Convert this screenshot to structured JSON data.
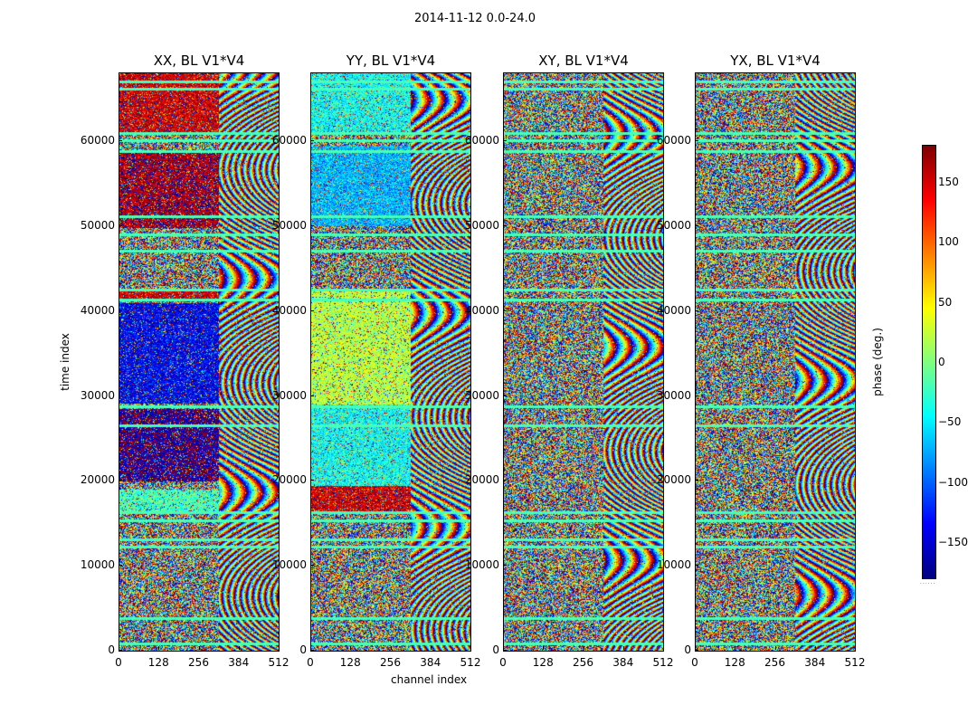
{
  "chart_data": {
    "type": "heatmap",
    "suptitle": "2014-11-12 0.0-24.0",
    "xlabel": "channel index",
    "ylabel": "time index",
    "xlim": [
      0,
      512
    ],
    "ylim": [
      0,
      68000
    ],
    "x_ticks": [
      0,
      128,
      256,
      384,
      512
    ],
    "x_tick_labels": [
      "0",
      "128",
      "256",
      "384",
      "512"
    ],
    "y_ticks": [
      0,
      10000,
      20000,
      30000,
      40000,
      50000,
      60000
    ],
    "y_tick_labels": [
      "0",
      "10000",
      "20000",
      "30000",
      "40000",
      "50000",
      "60000"
    ],
    "colormap": "jet",
    "panels": [
      {
        "title": "XX, BL V1*V4",
        "pol": "XX"
      },
      {
        "title": "YY, BL V1*V4",
        "pol": "YY"
      },
      {
        "title": "XY, BL V1*V4",
        "pol": "XY"
      },
      {
        "title": "YX, BL V1*V4",
        "pol": "YX"
      }
    ],
    "colorbar": {
      "label": "phase (deg.)",
      "range": [
        -180,
        180
      ],
      "ticks": [
        -150,
        -100,
        -50,
        0,
        50,
        100,
        150
      ],
      "tick_labels": [
        "−150",
        "−100",
        "−50",
        "0",
        "50",
        "100",
        "150"
      ]
    },
    "gap_rows_time_index": [
      900,
      3800,
      12300,
      13100,
      15400,
      16300,
      26500,
      28800,
      41400,
      42500,
      47100,
      49000,
      51200,
      58800,
      60100,
      61000,
      66200,
      67000
    ],
    "coherent_region_start_channel": 320,
    "regions": {
      "XX": [
        {
          "t": [
            16300,
            19000
          ],
          "mean_phase": -20
        },
        {
          "t": [
            20000,
            28500
          ],
          "mean_phase": -170
        },
        {
          "t": [
            29200,
            41000
          ],
          "mean_phase": -140
        },
        {
          "t": [
            41500,
            42500
          ],
          "mean_phase": 150
        },
        {
          "t": [
            49800,
            59000
          ],
          "mean_phase": 165
        },
        {
          "t": [
            61000,
            68000
          ],
          "mean_phase": 150
        }
      ],
      "YY": [
        {
          "t": [
            16500,
            19500
          ],
          "mean_phase": 150
        },
        {
          "t": [
            19500,
            29000
          ],
          "mean_phase": -40
        },
        {
          "t": [
            29000,
            42500
          ],
          "mean_phase": 20
        },
        {
          "t": [
            50000,
            59500
          ],
          "mean_phase": -70
        },
        {
          "t": [
            61000,
            68000
          ],
          "mean_phase": -40
        }
      ]
    }
  }
}
